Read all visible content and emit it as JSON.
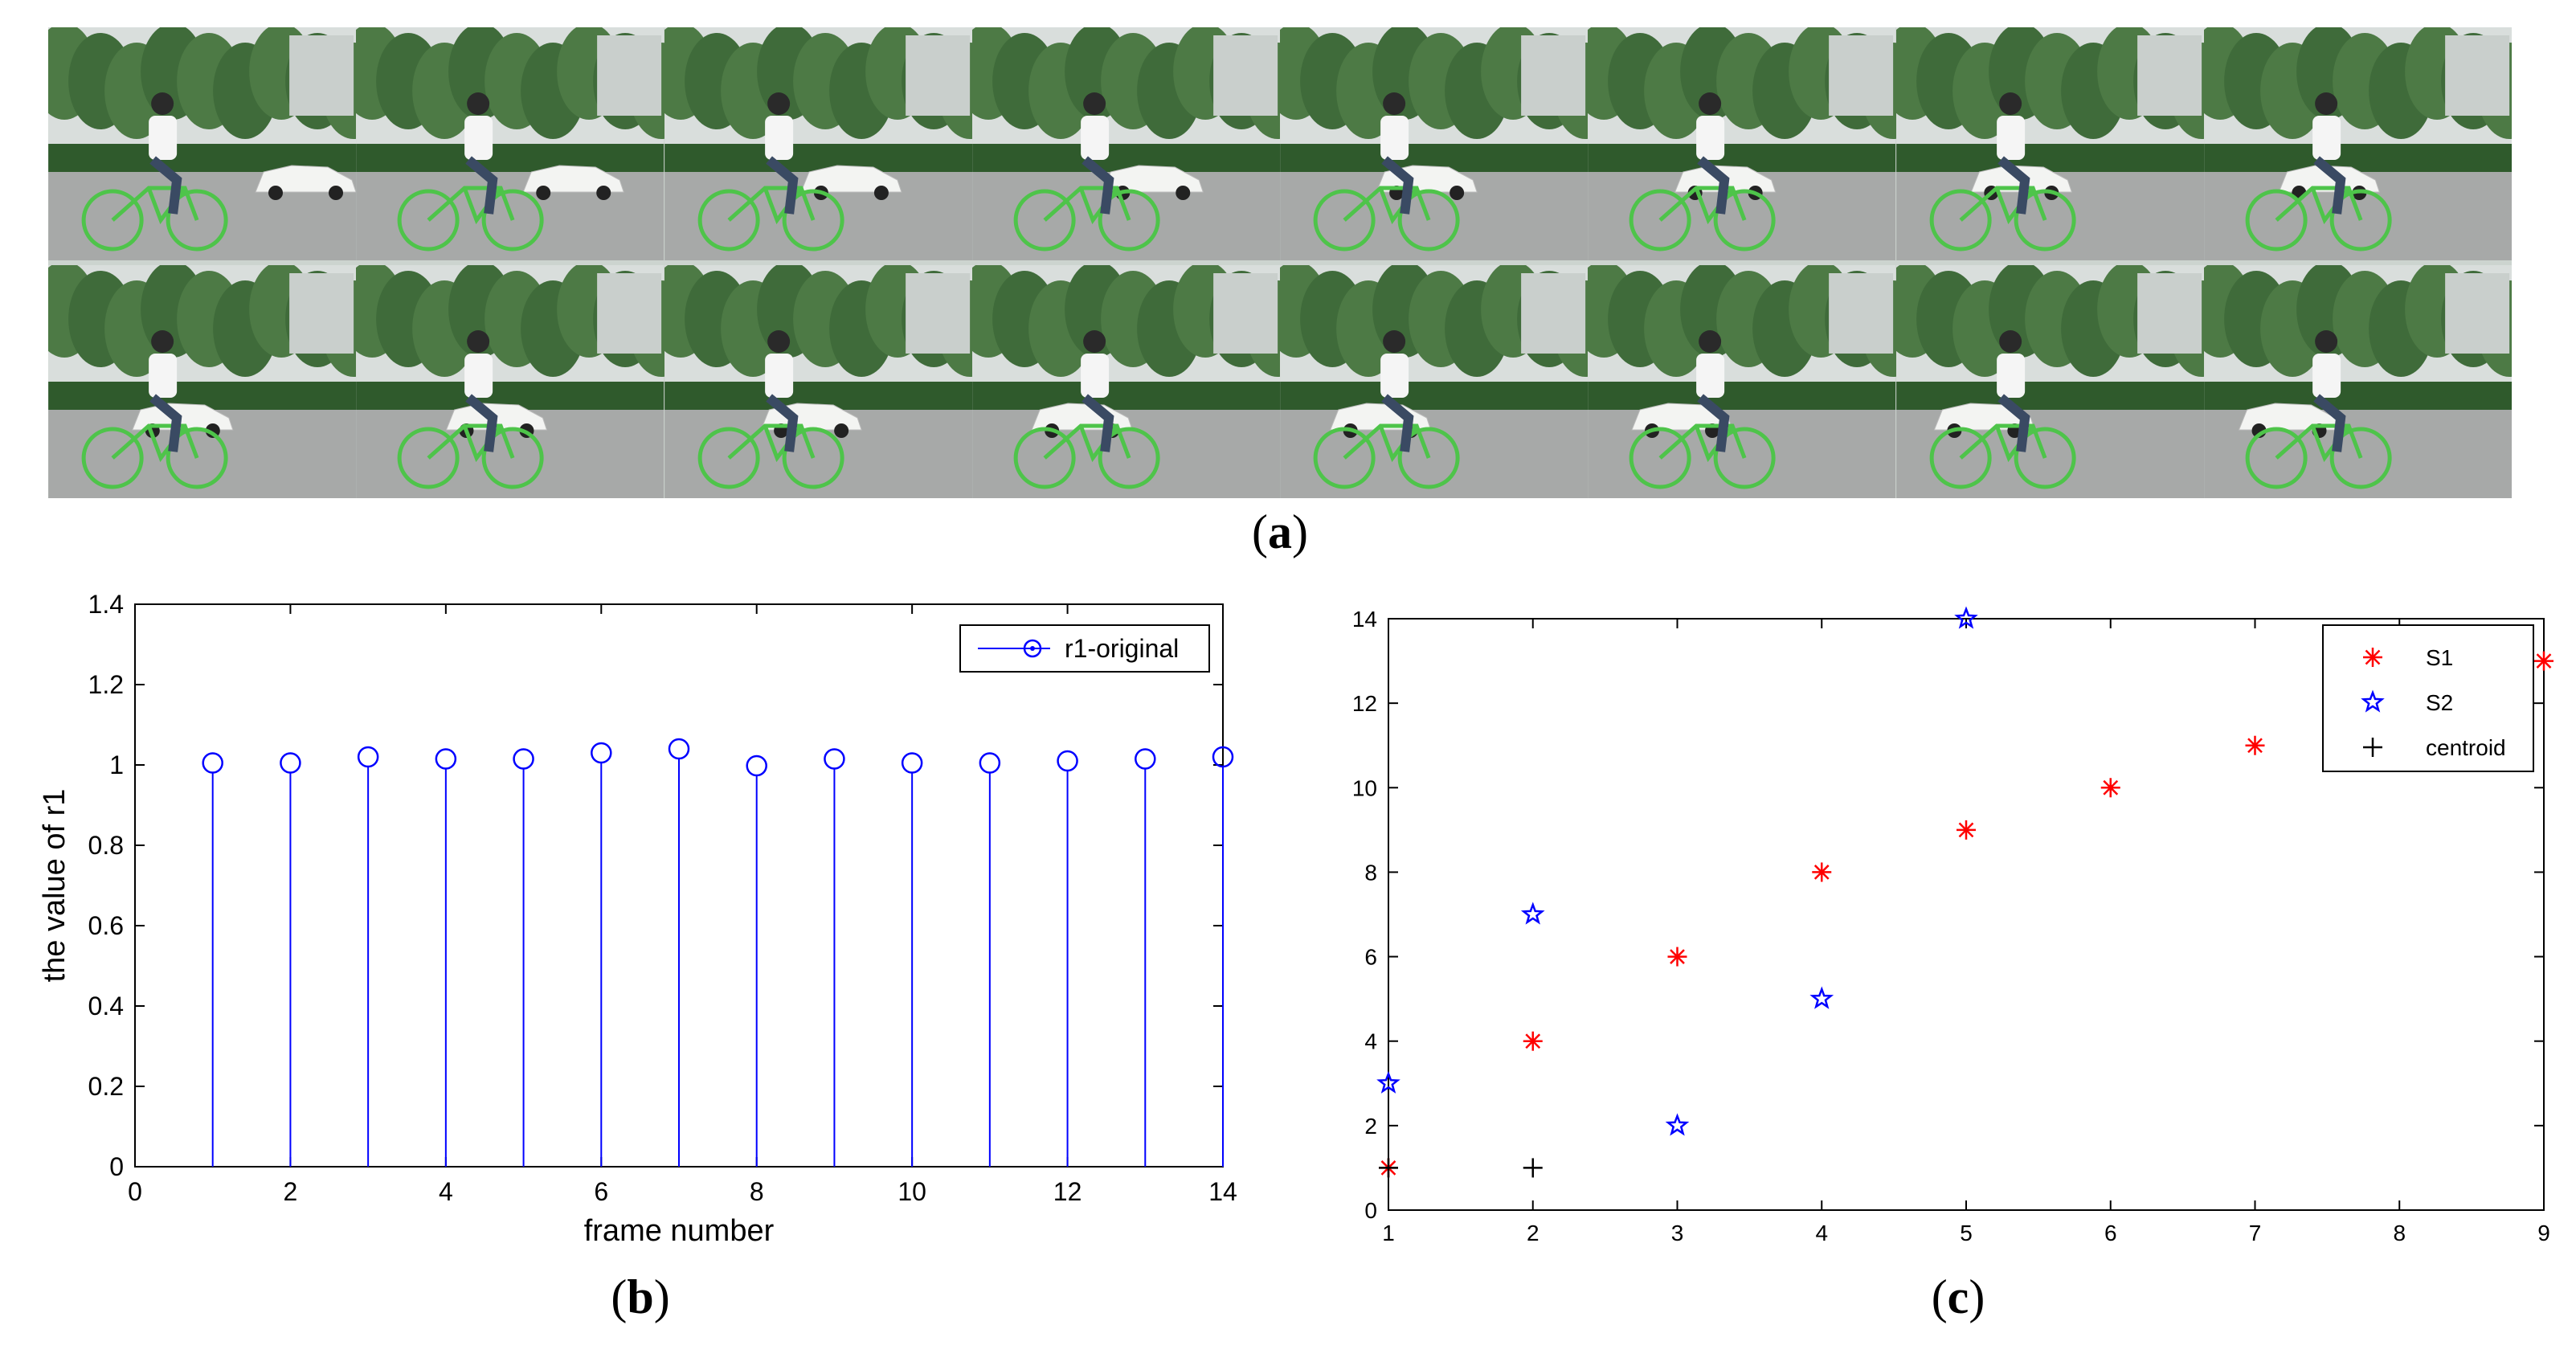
{
  "panels": {
    "a": {
      "caption": "a"
    },
    "b": {
      "caption": "b"
    },
    "c": {
      "caption": "c"
    }
  },
  "colors": {
    "sky": "#d9dedc",
    "trees": "#3f6b3a",
    "hedge": "#2f5a2c",
    "road": "#a7a9a8",
    "car": "#f3f4f2",
    "bike": "#4ec44a",
    "shirt": "#f5f5f5",
    "jeans": "#3a4a63",
    "stem_blue": "#0000ff",
    "s1_red": "#ff0000",
    "s2_blue": "#0000ff",
    "centroid_black": "#000000"
  },
  "frames": {
    "rows": 2,
    "cols": 8,
    "top_row_car_offset": [
      0.83,
      0.7,
      0.6,
      0.58,
      0.47,
      0.44,
      0.4,
      0.4
    ],
    "bottom_row_car_offset": [
      0.43,
      0.45,
      0.47,
      0.35,
      0.32,
      0.3,
      0.28,
      0.27
    ]
  },
  "chart_data": [
    {
      "panel": "b",
      "type": "stem",
      "xlabel": "frame number",
      "ylabel": "the value of r1",
      "xlim": [
        0,
        14
      ],
      "ylim": [
        0,
        1.4
      ],
      "xticks": [
        "0",
        "2",
        "4",
        "6",
        "8",
        "10",
        "12",
        "14"
      ],
      "yticks": [
        "0",
        "0.2",
        "0.4",
        "0.6",
        "0.8",
        "1",
        "1.2",
        "1.4"
      ],
      "legend_position": "top-right",
      "series": [
        {
          "name": "r1-original",
          "x": [
            1,
            2,
            3,
            4,
            5,
            6,
            7,
            8,
            9,
            10,
            11,
            12,
            13,
            14
          ],
          "values": [
            1.005,
            1.005,
            1.02,
            1.015,
            1.015,
            1.03,
            1.04,
            0.998,
            1.015,
            1.005,
            1.005,
            1.01,
            1.015,
            1.02
          ]
        }
      ]
    },
    {
      "panel": "c",
      "type": "scatter",
      "xlim": [
        1,
        9
      ],
      "ylim": [
        0,
        14
      ],
      "xticks": [
        "1",
        "2",
        "3",
        "4",
        "5",
        "6",
        "7",
        "8",
        "9"
      ],
      "yticks": [
        "0",
        "2",
        "4",
        "6",
        "8",
        "10",
        "12",
        "14"
      ],
      "legend_position": "top-right",
      "series": [
        {
          "name": "S1",
          "marker": "asterisk",
          "x": [
            1,
            2,
            3,
            4,
            5,
            6,
            7,
            9
          ],
          "y": [
            1,
            4,
            6,
            8,
            9,
            10,
            11,
            13
          ]
        },
        {
          "name": "S2",
          "marker": "star",
          "x": [
            1,
            2,
            3,
            4,
            5
          ],
          "y": [
            3,
            7,
            2,
            5,
            14
          ]
        },
        {
          "name": "centroid",
          "marker": "plus",
          "x": [
            1,
            2
          ],
          "y": [
            1,
            1
          ]
        }
      ]
    }
  ]
}
